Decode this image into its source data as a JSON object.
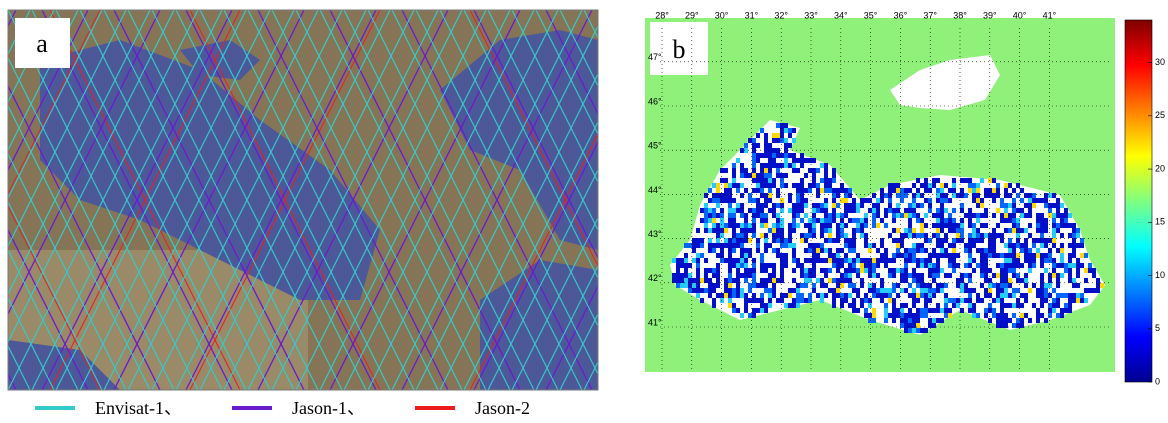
{
  "panel_a": {
    "label": "a",
    "legend": [
      {
        "label": "Envisat-1、",
        "color": "#33cccc"
      },
      {
        "label": "Jason-1、",
        "color": "#6a1bd0"
      },
      {
        "label": "Jason-2",
        "color": "#ee1c1c"
      }
    ]
  },
  "panel_b": {
    "label": "b",
    "lon_ticks": [
      {
        "value": 28,
        "label": "28°"
      },
      {
        "value": 29,
        "label": "29°"
      },
      {
        "value": 30,
        "label": "30°"
      },
      {
        "value": 31,
        "label": "31°"
      },
      {
        "value": 32,
        "label": "32°"
      },
      {
        "value": 33,
        "label": "33°"
      },
      {
        "value": 34,
        "label": "34°"
      },
      {
        "value": 35,
        "label": "35°"
      },
      {
        "value": 36,
        "label": "36°"
      },
      {
        "value": 37,
        "label": "37°"
      },
      {
        "value": 38,
        "label": "38°"
      },
      {
        "value": 39,
        "label": "39°"
      },
      {
        "value": 40,
        "label": "40°"
      },
      {
        "value": 41,
        "label": "41°"
      }
    ],
    "lat_ticks": [
      {
        "value": 41,
        "label": "41°"
      },
      {
        "value": 42,
        "label": "42°"
      },
      {
        "value": 43,
        "label": "43°"
      },
      {
        "value": 44,
        "label": "44°"
      },
      {
        "value": 45,
        "label": "45°"
      },
      {
        "value": 46,
        "label": "46°"
      },
      {
        "value": 47,
        "label": "47°"
      }
    ],
    "colorbar": {
      "lim": [
        0,
        34
      ],
      "ticks": [
        0,
        5,
        10,
        15,
        20,
        25,
        30
      ]
    }
  }
}
